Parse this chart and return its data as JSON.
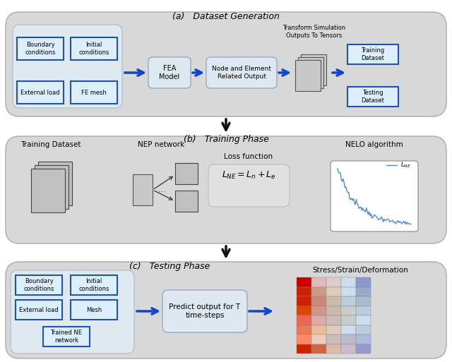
{
  "bg_color": "#f0f0f0",
  "panel_bg": "#d8d8d8",
  "box_blue_face": "#ddeeff",
  "box_blue_edge": "#2255aa",
  "box_gray_face": "#e8e8e8",
  "box_gray_edge": "#888888",
  "arrow_blue": "#1144cc",
  "arrow_black": "#111111",
  "title_a": "(a)   Dataset Generation",
  "title_b": "(b)   Training Phase",
  "title_c": "(c)   Testing Phase",
  "label_a1": "Boundary\nconditions",
  "label_a2": "Initial\nconditions",
  "label_a3": "External load",
  "label_a4": "FE mesh",
  "label_fea": "FEA\nModel",
  "label_node": "Node and Element\nRelated Output",
  "label_transform": "Transform Simulation\nOutputs To Tensors",
  "label_training": "Training\nDataset",
  "label_testing": "Testing\nDataset",
  "label_train_ds": "Training Dataset",
  "label_nep": "NEP network",
  "label_loss": "Loss function",
  "label_loss_eq": "$L_{NE} = L_n + L_e$",
  "label_nelo": "NELO algorithm",
  "label_lne": "$L_{NE}$",
  "label_bc2": "Boundary\nconditions",
  "label_ic2": "Initial\nconditions",
  "label_el2": "External load",
  "label_mesh2": "Mesh",
  "label_trained": "Trained NE\nnetwork",
  "label_predict": "Predict output for T\ntime-steps",
  "label_stress": "Stress/Strain/Deformation"
}
